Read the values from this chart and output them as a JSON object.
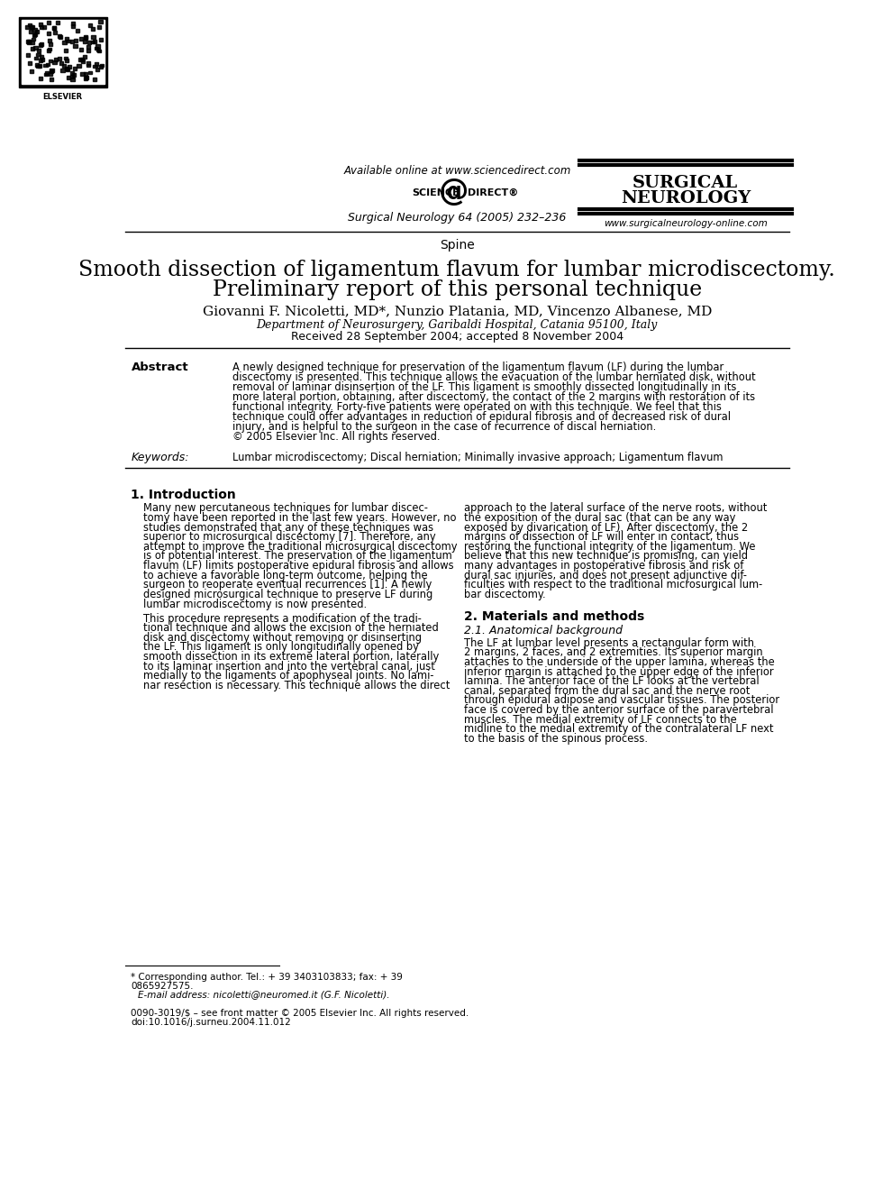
{
  "bg_color": "#ffffff",
  "available_online_text": "Available online at www.sciencedirect.com",
  "journal_name_line1": "SURGICAL",
  "journal_name_line2": "NEUROLOGY",
  "journal_ref": "Surgical Neurology 64 (2005) 232–236",
  "journal_website": "www.surgicalneurology-online.com",
  "section": "Spine",
  "title_line1": "Smooth dissection of ligamentum flavum for lumbar microdiscectomy.",
  "title_line2": "Preliminary report of this personal technique",
  "authors": "Giovanni F. Nicoletti, MD*, Nunzio Platania, MD, Vincenzo Albanese, MD",
  "affiliation": "Department of Neurosurgery, Garibaldi Hospital, Catania 95100, Italy",
  "received": "Received 28 September 2004; accepted 8 November 2004",
  "abstract_label": "Abstract",
  "keywords_label": "Keywords:",
  "keywords_text": "Lumbar microdiscectomy; Discal herniation; Minimally invasive approach; Ligamentum flavum",
  "intro_heading": "1. Introduction",
  "materials_heading": "2. Materials and methods",
  "materials_subheading": "2.1. Anatomical background",
  "footnote_star": "* Corresponding author. Tel.: + 39 3403103833; fax: + 39",
  "footnote_star2": "0865927575.",
  "footnote_email": "E-mail address: nicoletti@neuromed.it (G.F. Nicoletti).",
  "copyright_text": "0090-3019/$ – see front matter © 2005 Elsevier Inc. All rights reserved.",
  "doi_text": "doi:10.1016/j.surneu.2004.11.012",
  "abstract_lines": [
    "A newly designed technique for preservation of the ligamentum flavum (LF) during the lumbar",
    "discectomy is presented. This technique allows the evacuation of the lumbar herniated disk, without",
    "removal or laminar disinsertion of the LF. This ligament is smoothly dissected longitudinally in its",
    "more lateral portion, obtaining, after discectomy, the contact of the 2 margins with restoration of its",
    "functional integrity. Forty-five patients were operated on with this technique. We feel that this",
    "technique could offer advantages in reduction of epidural fibrosis and of decreased risk of dural",
    "injury, and is helpful to the surgeon in the case of recurrence of discal herniation.",
    "© 2005 Elsevier Inc. All rights reserved."
  ],
  "intro_col1_lines": [
    "Many new percutaneous techniques for lumbar discec-",
    "tomy have been reported in the last few years. However, no",
    "studies demonstrated that any of these techniques was",
    "superior to microsurgical discectomy [7]. Therefore, any",
    "attempt to improve the traditional microsurgical discectomy",
    "is of potential interest. The preservation of the ligamentum",
    "flavum (LF) limits postoperative epidural fibrosis and allows",
    "to achieve a favorable long-term outcome, helping the",
    "surgeon to reoperate eventual recurrences [1]. A newly",
    "designed microsurgical technique to preserve LF during",
    "lumbar microdiscectomy is now presented."
  ],
  "intro_col1_lines2": [
    "This procedure represents a modification of the tradi-",
    "tional technique and allows the excision of the herniated",
    "disk and discectomy without removing or disinserting",
    "the LF. This ligament is only longitudinally opened by",
    "smooth dissection in its extreme lateral portion, laterally",
    "to its laminar insertion and into the vertebral canal, just",
    "medially to the ligaments of apophyseal joints. No lami-",
    "nar resection is necessary. This technique allows the direct"
  ],
  "intro_col2_lines": [
    "approach to the lateral surface of the nerve roots, without",
    "the exposition of the dural sac (that can be any way",
    "exposed by divarication of LF). After discectomy, the 2",
    "margins of dissection of LF will enter in contact, thus",
    "restoring the functional integrity of the ligamentum. We",
    "believe that this new technique is promising, can yield",
    "many advantages in postoperative fibrosis and risk of",
    "dural sac injuries, and does not present adjunctive dif-",
    "ficulties with respect to the traditional microsurgical lum-",
    "bar discectomy."
  ],
  "materials_lines": [
    "The LF at lumbar level presents a rectangular form with",
    "2 margins, 2 faces, and 2 extremities. Its superior margin",
    "attaches to the underside of the upper lamina, whereas the",
    "inferior margin is attached to the upper edge of the inferior",
    "lamina. The anterior face of the LF looks at the vertebral",
    "canal, separated from the dural sac and the nerve root",
    "through epidural adipose and vascular tissues. The posterior",
    "face is covered by the anterior surface of the paravertebral",
    "muscles. The medial extremity of LF connects to the",
    "midline to the medial extremity of the contralateral LF next",
    "to the basis of the spinous process."
  ]
}
